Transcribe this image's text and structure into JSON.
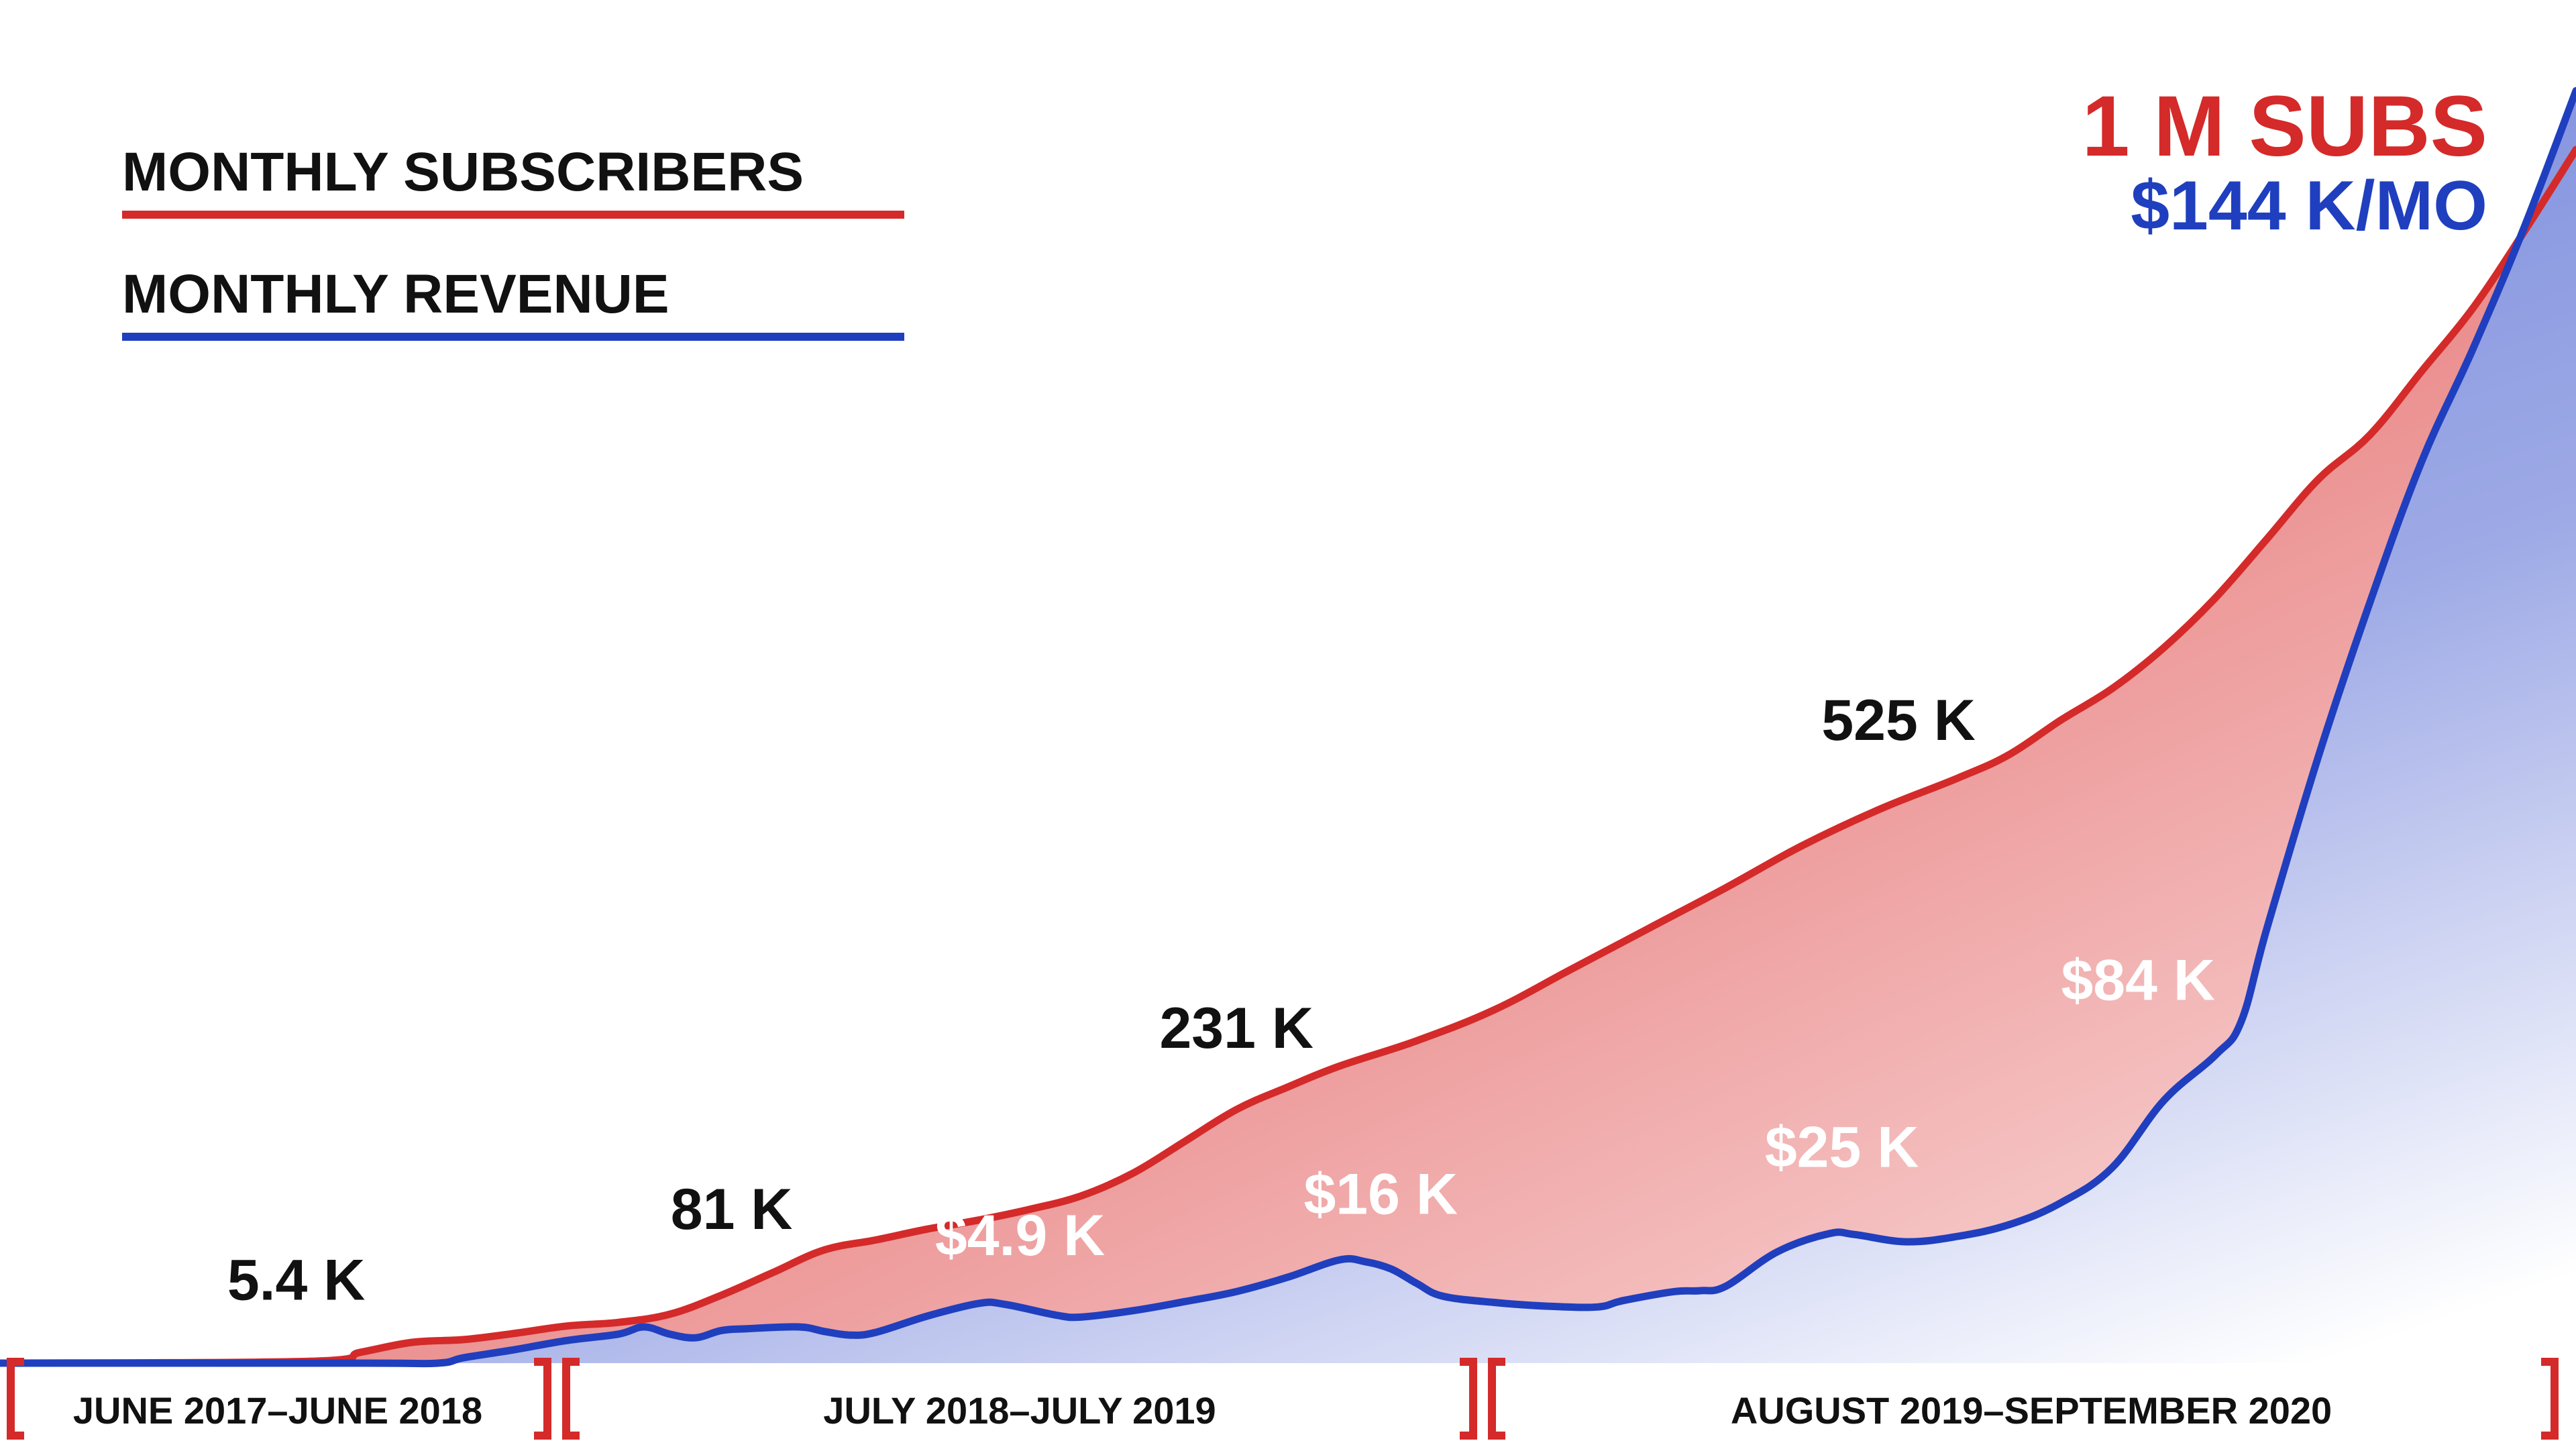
{
  "colors": {
    "subscribers": "#d42a2a",
    "revenue": "#1f3fbf",
    "subscribers_fill": "#e98585",
    "revenue_fill": "#6f84d8"
  },
  "headline": {
    "subs": "1 M SUBS",
    "revenue": "$144 K/MO"
  },
  "legend": [
    {
      "label": "MONTHLY SUBSCRIBERS",
      "color": "#d42a2a"
    },
    {
      "label": "MONTHLY REVENUE",
      "color": "#1f3fbf"
    }
  ],
  "periods": [
    "JUNE 2017–JUNE 2018",
    "JULY 2018–JULY 2019",
    "AUGUST 2019–SEPTEMBER 2020"
  ],
  "chart_data": {
    "type": "area",
    "x_start": "June 2017",
    "x_end": "September 2020",
    "series": [
      {
        "name": "MONTHLY SUBSCRIBERS",
        "color": "#d42a2a",
        "annotations": [
          "5.4 K",
          "81 K",
          "231 K",
          "525 K",
          "1 M SUBS"
        ],
        "points": [
          [
            0.0,
            0
          ],
          [
            0.12,
            0.2
          ],
          [
            0.14,
            1.2
          ],
          [
            0.16,
            2.3
          ],
          [
            0.18,
            2.6
          ],
          [
            0.2,
            3.3
          ],
          [
            0.22,
            4.1
          ],
          [
            0.24,
            4.5
          ],
          [
            0.26,
            5.4
          ],
          [
            0.28,
            7.5
          ],
          [
            0.3,
            10.0
          ],
          [
            0.32,
            12.5
          ],
          [
            0.34,
            13.6
          ],
          [
            0.36,
            14.8
          ],
          [
            0.38,
            15.8
          ],
          [
            0.4,
            17.0
          ],
          [
            0.42,
            18.5
          ],
          [
            0.44,
            21.0
          ],
          [
            0.46,
            24.5
          ],
          [
            0.48,
            28.0
          ],
          [
            0.5,
            30.5
          ],
          [
            0.52,
            32.8
          ],
          [
            0.55,
            35.6
          ],
          [
            0.58,
            39.0
          ],
          [
            0.61,
            43.5
          ],
          [
            0.64,
            48.0
          ],
          [
            0.67,
            52.5
          ],
          [
            0.7,
            57.2
          ],
          [
            0.73,
            61.2
          ],
          [
            0.76,
            64.6
          ],
          [
            0.78,
            67.2
          ],
          [
            0.8,
            71.0
          ],
          [
            0.82,
            74.5
          ],
          [
            0.84,
            79.0
          ],
          [
            0.86,
            84.5
          ],
          [
            0.88,
            91.0
          ],
          [
            0.9,
            97.6
          ],
          [
            0.92,
            102.5
          ],
          [
            0.94,
            109.5
          ],
          [
            0.96,
            116.5
          ],
          [
            0.98,
            125.0
          ],
          [
            1.0,
            134.0
          ]
        ],
        "unit_note": "values in thousands of subscribers, scaled (annotated: 5.4 K, 81 K, 231 K, 525 K, 1 M)"
      },
      {
        "name": "MONTHLY REVENUE",
        "color": "#1f3fbf",
        "annotations": [
          "$4.9 K",
          "$16 K",
          "$25 K",
          "$84 K",
          "$144 K/MO"
        ],
        "points": [
          [
            0.0,
            0
          ],
          [
            0.14,
            0
          ],
          [
            0.17,
            0
          ],
          [
            0.18,
            0.6
          ],
          [
            0.2,
            1.5
          ],
          [
            0.22,
            2.5
          ],
          [
            0.24,
            3.2
          ],
          [
            0.25,
            4.0
          ],
          [
            0.26,
            3.2
          ],
          [
            0.27,
            2.8
          ],
          [
            0.28,
            3.6
          ],
          [
            0.29,
            3.8
          ],
          [
            0.31,
            4.0
          ],
          [
            0.32,
            3.5
          ],
          [
            0.33,
            3.1
          ],
          [
            0.34,
            3.4
          ],
          [
            0.36,
            5.2
          ],
          [
            0.38,
            6.6
          ],
          [
            0.39,
            6.5
          ],
          [
            0.41,
            5.3
          ],
          [
            0.42,
            5.1
          ],
          [
            0.44,
            5.8
          ],
          [
            0.46,
            6.8
          ],
          [
            0.48,
            7.9
          ],
          [
            0.5,
            9.5
          ],
          [
            0.52,
            11.4
          ],
          [
            0.53,
            11.2
          ],
          [
            0.54,
            10.4
          ],
          [
            0.55,
            8.8
          ],
          [
            0.56,
            7.4
          ],
          [
            0.58,
            6.7
          ],
          [
            0.6,
            6.3
          ],
          [
            0.62,
            6.2
          ],
          [
            0.63,
            6.9
          ],
          [
            0.65,
            7.9
          ],
          [
            0.66,
            8.0
          ],
          [
            0.67,
            8.5
          ],
          [
            0.69,
            12.3
          ],
          [
            0.71,
            14.3
          ],
          [
            0.72,
            14.2
          ],
          [
            0.74,
            13.4
          ],
          [
            0.76,
            14.0
          ],
          [
            0.78,
            15.3
          ],
          [
            0.8,
            17.7
          ],
          [
            0.82,
            21.6
          ],
          [
            0.84,
            29.0
          ],
          [
            0.86,
            34.0
          ],
          [
            0.87,
            37.7
          ],
          [
            0.88,
            48.0
          ],
          [
            0.9,
            67.0
          ],
          [
            0.92,
            84.0
          ],
          [
            0.94,
            99.5
          ],
          [
            0.96,
            112.0
          ],
          [
            0.98,
            125.5
          ],
          [
            1.0,
            140.5
          ]
        ],
        "unit_note": "values scaled to shared axis (annotated: $4.9 K, $16 K, $25 K, $84 K, $144 K/MO)"
      }
    ],
    "labels": {
      "subscribers": [
        {
          "text": "5.4 K",
          "x": 0.115
        },
        {
          "text": "81 K",
          "x": 0.284
        },
        {
          "text": "231 K",
          "x": 0.48
        },
        {
          "text": "525 K",
          "x": 0.737
        }
      ],
      "revenue": [
        {
          "text": "$4.9 K",
          "x": 0.396
        },
        {
          "text": "$16 K",
          "x": 0.536
        },
        {
          "text": "$25 K",
          "x": 0.715
        },
        {
          "text": "$84 K",
          "x": 0.83
        }
      ]
    },
    "ylim": [
      0,
      140
    ],
    "grid": false,
    "legend_position": "top-left"
  }
}
